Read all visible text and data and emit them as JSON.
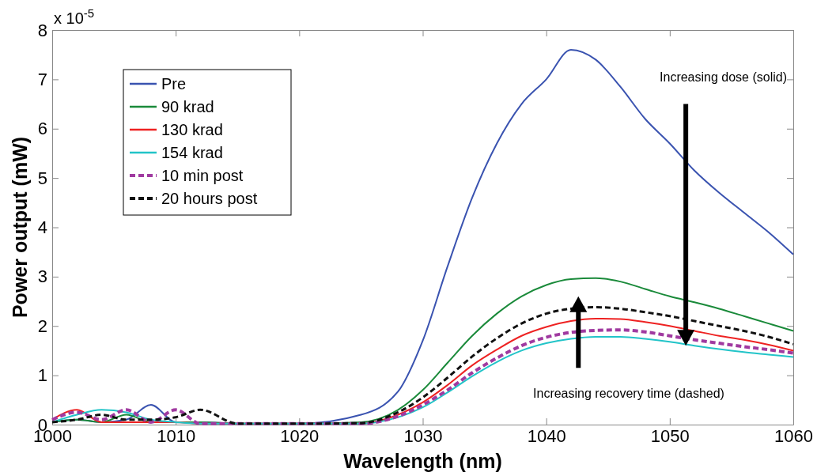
{
  "chart_data": {
    "type": "line",
    "xlabel": "Wavelength (nm)",
    "ylabel": "Power output (mW)",
    "xlim": [
      1000,
      1060
    ],
    "xticks": [
      1000,
      1010,
      1020,
      1030,
      1040,
      1050,
      1060
    ],
    "ylim": [
      0,
      8
    ],
    "yticks": [
      0,
      1,
      2,
      3,
      4,
      5,
      6,
      7,
      8
    ],
    "grid": false,
    "legend": "top left",
    "x": [
      1000,
      1002,
      1004,
      1006,
      1008,
      1010,
      1012,
      1015,
      1020,
      1025,
      1028,
      1030,
      1032,
      1034,
      1036,
      1038,
      1040,
      1042,
      1044,
      1046,
      1048,
      1050,
      1052,
      1054,
      1056,
      1058,
      1060
    ],
    "series": [
      {
        "name": "Pre",
        "color": "#3a53b0",
        "line_style": "solid",
        "values": [
          0.05,
          0.1,
          0.05,
          0.1,
          0.4,
          0.05,
          0.05,
          0.02,
          0.02,
          0.2,
          0.67,
          1.7,
          3.2,
          4.6,
          5.7,
          6.5,
          7.0,
          7.6,
          7.4,
          6.85,
          6.2,
          5.7,
          5.15,
          4.7,
          4.3,
          3.9,
          3.45
        ]
      },
      {
        "name": "90 krad",
        "color": "#1a8a3a",
        "line_style": "solid",
        "values": [
          0.05,
          0.1,
          0.05,
          0.2,
          0.05,
          0.05,
          0.05,
          0.02,
          0.02,
          0.05,
          0.3,
          0.7,
          1.25,
          1.8,
          2.25,
          2.6,
          2.83,
          2.95,
          2.97,
          2.9,
          2.75,
          2.6,
          2.48,
          2.35,
          2.2,
          2.05,
          1.9
        ]
      },
      {
        "name": "130 krad",
        "color": "#ee2222",
        "line_style": "solid",
        "values": [
          0.1,
          0.3,
          0.05,
          0.05,
          0.05,
          0.05,
          0.02,
          0.02,
          0.02,
          0.02,
          0.2,
          0.45,
          0.8,
          1.2,
          1.52,
          1.8,
          1.98,
          2.1,
          2.15,
          2.14,
          2.08,
          2.0,
          1.9,
          1.8,
          1.72,
          1.62,
          1.5
        ]
      },
      {
        "name": "154 krad",
        "color": "#22c4c8",
        "line_style": "solid",
        "values": [
          0.05,
          0.2,
          0.3,
          0.25,
          0.1,
          0.05,
          0.02,
          0.02,
          0.02,
          0.02,
          0.15,
          0.35,
          0.65,
          0.98,
          1.27,
          1.5,
          1.65,
          1.74,
          1.78,
          1.78,
          1.74,
          1.68,
          1.6,
          1.53,
          1.47,
          1.42,
          1.37
        ]
      },
      {
        "name": "10 min post",
        "color": "#a03aa0",
        "line_style": "dashed",
        "values": [
          0.1,
          0.25,
          0.1,
          0.3,
          0.05,
          0.3,
          0.02,
          0.02,
          0.02,
          0.02,
          0.17,
          0.4,
          0.7,
          1.05,
          1.35,
          1.6,
          1.77,
          1.87,
          1.91,
          1.92,
          1.88,
          1.8,
          1.72,
          1.65,
          1.58,
          1.52,
          1.45
        ]
      },
      {
        "name": "20 hours post",
        "color": "#111111",
        "line_style": "dashed",
        "values": [
          0.05,
          0.1,
          0.2,
          0.1,
          0.1,
          0.15,
          0.3,
          0.02,
          0.02,
          0.03,
          0.25,
          0.55,
          0.95,
          1.38,
          1.75,
          2.05,
          2.25,
          2.35,
          2.38,
          2.35,
          2.28,
          2.2,
          2.1,
          2.0,
          1.9,
          1.78,
          1.63
        ]
      }
    ],
    "annotations": [
      "x 10$^{-5}$",
      "Increasing dose (solid)",
      "Increasing recovery time (dashed)"
    ]
  }
}
